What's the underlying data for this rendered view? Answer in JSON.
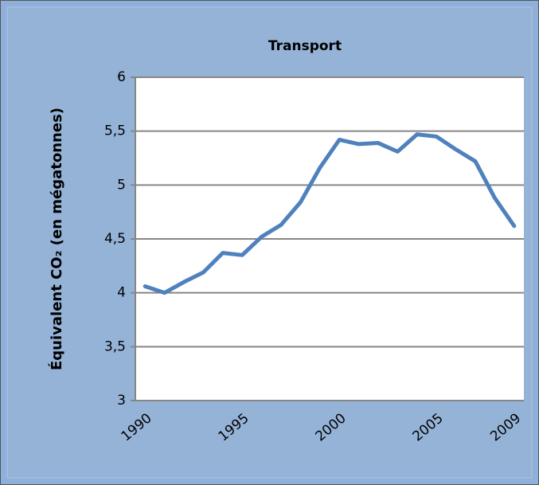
{
  "chart_data": {
    "type": "line",
    "title": "Transport",
    "y_label": "Équivalent CO₂ (en mégatonnes)",
    "categories": [
      "1990",
      null,
      null,
      null,
      null,
      "1995",
      null,
      null,
      null,
      null,
      "2000",
      null,
      null,
      null,
      null,
      "2005",
      null,
      null,
      null,
      "2009"
    ],
    "series": [
      {
        "name": "Transport",
        "color": "#4f81bd",
        "values": [
          4.06,
          4.0,
          4.1,
          4.19,
          4.37,
          4.35,
          4.52,
          4.63,
          4.84,
          5.16,
          5.42,
          5.38,
          5.39,
          5.31,
          5.47,
          5.45,
          5.33,
          5.22,
          4.88,
          4.62
        ]
      }
    ],
    "ylim": [
      3,
      6
    ],
    "yticks": [
      3,
      {
        "value": 3.5,
        "label": "3,5"
      },
      4,
      {
        "value": 4.5,
        "label": "4,5"
      },
      5,
      {
        "value": 5.5,
        "label": "5,5"
      },
      6
    ],
    "grid": true
  }
}
